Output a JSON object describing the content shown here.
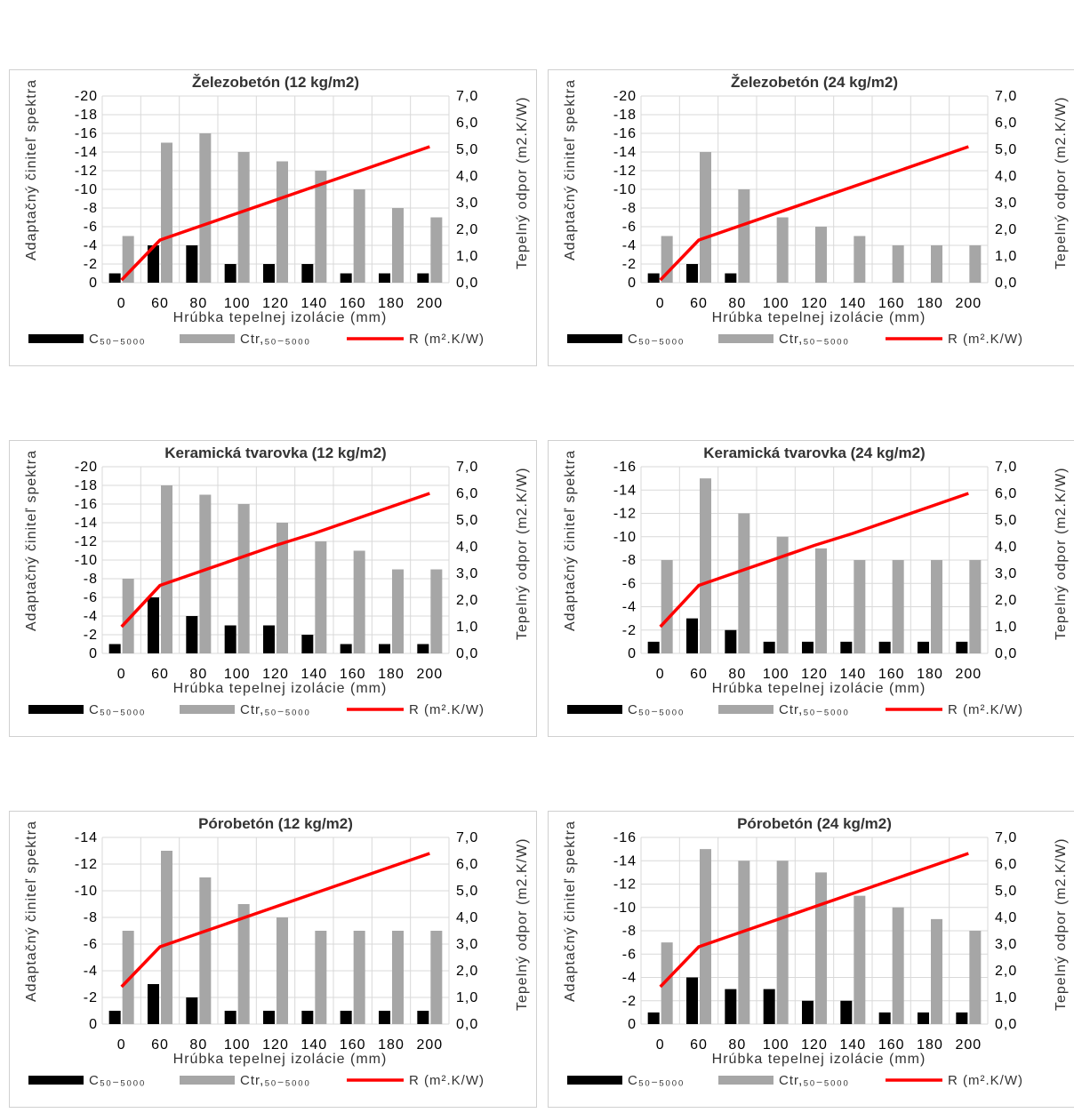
{
  "colors": {
    "c50": "#000000",
    "ctr": "#a6a6a6",
    "r": "#ff0000",
    "grid": "#d9d9d9"
  },
  "labels": {
    "xlabel": "Hrúbka tepelnej izolácie (mm)",
    "ylabel_left": "Adaptačný činiteľ spektra",
    "ylabel_right": "Tepelný odpor (m2.K/W)",
    "legend_c50": "C₅₀₋₅₀₀₀",
    "legend_ctr": "Ctr,₅₀₋₅₀₀₀",
    "legend_r": "R (m².K/W)"
  },
  "chart_data": [
    {
      "type": "bar",
      "title": "Železobetón (12 kg/m2)",
      "categories": [
        "0",
        "60",
        "80",
        "100",
        "120",
        "140",
        "160",
        "180",
        "200"
      ],
      "ylim_left": [
        0,
        -20
      ],
      "yticks_left": [
        "0",
        "-2",
        "-4",
        "-6",
        "-8",
        "-10",
        "-12",
        "-14",
        "-16",
        "-18",
        "-20"
      ],
      "ylim_right": [
        0,
        7
      ],
      "yticks_right": [
        "0,0",
        "1,0",
        "2,0",
        "3,0",
        "4,0",
        "5,0",
        "6,0",
        "7,0"
      ],
      "series": [
        {
          "name": "C₅₀₋₅₀₀₀",
          "kind": "bar",
          "axis": "left",
          "values": [
            -1,
            -4,
            -4,
            -2,
            -2,
            -2,
            -1,
            -1,
            -1
          ]
        },
        {
          "name": "Ctr,₅₀₋₅₀₀₀",
          "kind": "bar",
          "axis": "left",
          "values": [
            -5,
            -15,
            -16,
            -14,
            -13,
            -12,
            -10,
            -8,
            -7
          ]
        },
        {
          "name": "R (m².K/W)",
          "kind": "line",
          "axis": "right",
          "values": [
            0.1,
            1.6,
            2.1,
            2.6,
            3.1,
            3.6,
            4.1,
            4.6,
            5.1
          ]
        }
      ]
    },
    {
      "type": "bar",
      "title": "Železobetón (24 kg/m2)",
      "categories": [
        "0",
        "60",
        "80",
        "100",
        "120",
        "140",
        "160",
        "180",
        "200"
      ],
      "ylim_left": [
        0,
        -20
      ],
      "yticks_left": [
        "0",
        "-2",
        "-4",
        "-6",
        "-8",
        "-10",
        "-12",
        "-14",
        "-16",
        "-18",
        "-20"
      ],
      "ylim_right": [
        0,
        7
      ],
      "yticks_right": [
        "0,0",
        "1,0",
        "2,0",
        "3,0",
        "4,0",
        "5,0",
        "6,0",
        "7,0"
      ],
      "series": [
        {
          "name": "C₅₀₋₅₀₀₀",
          "kind": "bar",
          "axis": "left",
          "values": [
            -1,
            -2,
            -1,
            0,
            0,
            0,
            0,
            0,
            0
          ]
        },
        {
          "name": "Ctr,₅₀₋₅₀₀₀",
          "kind": "bar",
          "axis": "left",
          "values": [
            -5,
            -14,
            -10,
            -7,
            -6,
            -5,
            -4,
            -4,
            -4
          ]
        },
        {
          "name": "R (m².K/W)",
          "kind": "line",
          "axis": "right",
          "values": [
            0.1,
            1.6,
            2.1,
            2.6,
            3.1,
            3.6,
            4.1,
            4.6,
            5.1
          ]
        }
      ]
    },
    {
      "type": "bar",
      "title": "Keramická tvarovka (12 kg/m2)",
      "categories": [
        "0",
        "60",
        "80",
        "100",
        "120",
        "140",
        "160",
        "180",
        "200"
      ],
      "ylim_left": [
        0,
        -20
      ],
      "yticks_left": [
        "0",
        "-2",
        "-4",
        "-6",
        "-8",
        "-10",
        "-12",
        "-14",
        "-16",
        "-18",
        "-20"
      ],
      "ylim_right": [
        0,
        7
      ],
      "yticks_right": [
        "0,0",
        "1,0",
        "2,0",
        "3,0",
        "4,0",
        "5,0",
        "6,0",
        "7,0"
      ],
      "series": [
        {
          "name": "C₅₀₋₅₀₀₀",
          "kind": "bar",
          "axis": "left",
          "values": [
            -1,
            -6,
            -4,
            -3,
            -3,
            -2,
            -1,
            -1,
            -1
          ]
        },
        {
          "name": "Ctr,₅₀₋₅₀₀₀",
          "kind": "bar",
          "axis": "left",
          "values": [
            -8,
            -18,
            -17,
            -16,
            -14,
            -12,
            -11,
            -9,
            -9
          ]
        },
        {
          "name": "R (m².K/W)",
          "kind": "line",
          "axis": "right",
          "values": [
            1.0,
            2.55,
            3.05,
            3.55,
            4.05,
            4.5,
            5.0,
            5.5,
            6.0
          ]
        }
      ]
    },
    {
      "type": "bar",
      "title": "Keramická tvarovka (24 kg/m2)",
      "categories": [
        "0",
        "60",
        "80",
        "100",
        "120",
        "140",
        "160",
        "180",
        "200"
      ],
      "ylim_left": [
        0,
        -16
      ],
      "yticks_left": [
        "0",
        "-2",
        "-4",
        "-6",
        "-8",
        "-10",
        "-12",
        "-14",
        "-16"
      ],
      "ylim_right": [
        0,
        7
      ],
      "yticks_right": [
        "0,0",
        "1,0",
        "2,0",
        "3,0",
        "4,0",
        "5,0",
        "6,0",
        "7,0"
      ],
      "series": [
        {
          "name": "C₅₀₋₅₀₀₀",
          "kind": "bar",
          "axis": "left",
          "values": [
            -1,
            -3,
            -2,
            -1,
            -1,
            -1,
            -1,
            -1,
            -1
          ]
        },
        {
          "name": "Ctr,₅₀₋₅₀₀₀",
          "kind": "bar",
          "axis": "left",
          "values": [
            -8,
            -15,
            -12,
            -10,
            -9,
            -8,
            -8,
            -8,
            -8
          ]
        },
        {
          "name": "R (m².K/W)",
          "kind": "line",
          "axis": "right",
          "values": [
            1.0,
            2.55,
            3.05,
            3.55,
            4.05,
            4.5,
            5.0,
            5.5,
            6.0
          ]
        }
      ]
    },
    {
      "type": "bar",
      "title": "Pórobetón (12 kg/m2)",
      "categories": [
        "0",
        "60",
        "80",
        "100",
        "120",
        "140",
        "160",
        "180",
        "200"
      ],
      "ylim_left": [
        0,
        -14
      ],
      "yticks_left": [
        "0",
        "-2",
        "-4",
        "-6",
        "-8",
        "-10",
        "-12",
        "-14"
      ],
      "ylim_right": [
        0,
        7
      ],
      "yticks_right": [
        "0,0",
        "1,0",
        "2,0",
        "3,0",
        "4,0",
        "5,0",
        "6,0",
        "7,0"
      ],
      "series": [
        {
          "name": "C₅₀₋₅₀₀₀",
          "kind": "bar",
          "axis": "left",
          "values": [
            -1,
            -3,
            -2,
            -1,
            -1,
            -1,
            -1,
            -1,
            -1
          ]
        },
        {
          "name": "Ctr,₅₀₋₅₀₀₀",
          "kind": "bar",
          "axis": "left",
          "values": [
            -7,
            -13,
            -11,
            -9,
            -8,
            -7,
            -7,
            -7,
            -7
          ]
        },
        {
          "name": "R (m².K/W)",
          "kind": "line",
          "axis": "right",
          "values": [
            1.4,
            2.9,
            3.4,
            3.9,
            4.4,
            4.9,
            5.4,
            5.9,
            6.4
          ]
        }
      ]
    },
    {
      "type": "bar",
      "title": "Pórobetón (24 kg/m2)",
      "categories": [
        "0",
        "60",
        "80",
        "100",
        "120",
        "140",
        "160",
        "180",
        "200"
      ],
      "ylim_left": [
        0,
        -16
      ],
      "yticks_left": [
        "0",
        "-2",
        "-4",
        "-6",
        "-8",
        "-10",
        "-12",
        "-14",
        "-16"
      ],
      "ylim_right": [
        0,
        7
      ],
      "yticks_right": [
        "0,0",
        "1,0",
        "2,0",
        "3,0",
        "4,0",
        "5,0",
        "6,0",
        "7,0"
      ],
      "series": [
        {
          "name": "C₅₀₋₅₀₀₀",
          "kind": "bar",
          "axis": "left",
          "values": [
            -1,
            -4,
            -3,
            -3,
            -2,
            -2,
            -1,
            -1,
            -1
          ]
        },
        {
          "name": "Ctr,₅₀₋₅₀₀₀",
          "kind": "bar",
          "axis": "left",
          "values": [
            -7,
            -15,
            -14,
            -14,
            -13,
            -11,
            -10,
            -9,
            -8
          ]
        },
        {
          "name": "R (m².K/W)",
          "kind": "line",
          "axis": "right",
          "values": [
            1.4,
            2.9,
            3.4,
            3.9,
            4.4,
            4.9,
            5.4,
            5.9,
            6.4
          ]
        }
      ]
    }
  ]
}
